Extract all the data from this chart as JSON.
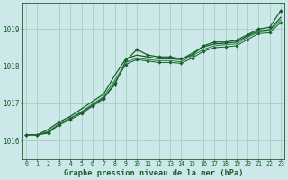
{
  "title": "Graphe pression niveau de la mer (hPa)",
  "background_color": "#cce8e8",
  "grid_color": "#99ccbb",
  "line_color_dark": "#1a5c2a",
  "line_color_light": "#2d8a4e",
  "x_ticks": [
    0,
    1,
    2,
    3,
    4,
    5,
    6,
    7,
    8,
    9,
    10,
    11,
    12,
    13,
    14,
    15,
    16,
    17,
    18,
    19,
    20,
    21,
    22,
    23
  ],
  "xlim": [
    -0.3,
    23.3
  ],
  "ylim": [
    1015.5,
    1019.7
  ],
  "y_ticks": [
    1016,
    1017,
    1018,
    1019
  ],
  "series": [
    {
      "y": [
        1016.15,
        1016.15,
        1016.2,
        1016.45,
        1016.6,
        1016.75,
        1016.95,
        1017.15,
        1017.5,
        1018.15,
        1018.45,
        1018.3,
        1018.25,
        1018.25,
        1018.2,
        1018.3,
        1018.55,
        1018.65,
        1018.65,
        1018.7,
        1018.85,
        1019.0,
        1019.05,
        1019.5
      ],
      "color": "#1a5c2a",
      "lw": 0.9,
      "marker": "D",
      "ms": 2.0
    },
    {
      "y": [
        1016.15,
        1016.15,
        1016.3,
        1016.5,
        1016.65,
        1016.85,
        1017.05,
        1017.25,
        1017.75,
        1018.2,
        1018.3,
        1018.25,
        1018.2,
        1018.2,
        1018.18,
        1018.35,
        1018.52,
        1018.6,
        1018.62,
        1018.65,
        1018.82,
        1018.95,
        1018.98,
        1019.32
      ],
      "color": "#1a5c2a",
      "lw": 0.9,
      "marker": null,
      "ms": 0
    },
    {
      "y": [
        1016.15,
        1016.15,
        1016.25,
        1016.45,
        1016.6,
        1016.78,
        1016.98,
        1017.18,
        1017.62,
        1018.1,
        1018.22,
        1018.18,
        1018.15,
        1018.15,
        1018.12,
        1018.28,
        1018.45,
        1018.55,
        1018.58,
        1018.6,
        1018.78,
        1018.92,
        1018.95,
        1019.25
      ],
      "color": "#2d8a4e",
      "lw": 0.8,
      "marker": null,
      "ms": 0
    },
    {
      "y": [
        1016.15,
        1016.15,
        1016.22,
        1016.42,
        1016.56,
        1016.72,
        1016.92,
        1017.12,
        1017.55,
        1018.05,
        1018.18,
        1018.14,
        1018.1,
        1018.1,
        1018.08,
        1018.22,
        1018.4,
        1018.5,
        1018.52,
        1018.55,
        1018.72,
        1018.88,
        1018.9,
        1019.18
      ],
      "color": "#1a5c2a",
      "lw": 0.7,
      "marker": "D",
      "ms": 1.8
    }
  ]
}
